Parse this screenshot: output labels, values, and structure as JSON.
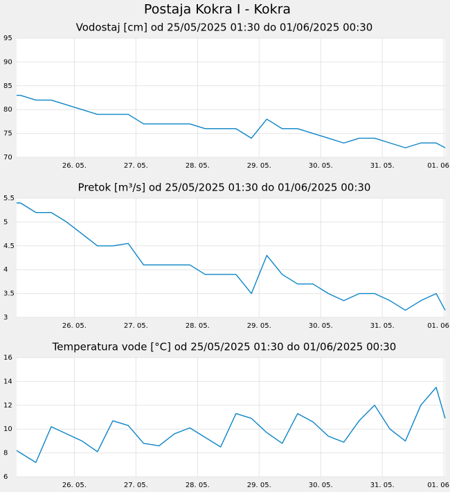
{
  "title": "Postaja Kokra I - Kokra",
  "chart_data": [
    {
      "type": "line",
      "title": "Vodostaj [cm] od 25/05/2025 01:30 do 01/06/2025 00:30",
      "x": [
        "2025-05-25 01:30",
        "2025-05-25 03:00",
        "2025-05-25 09:00",
        "2025-05-25 15:00",
        "2025-05-25 21:00",
        "2025-05-26 03:00",
        "2025-05-26 09:00",
        "2025-05-26 15:00",
        "2025-05-26 21:00",
        "2025-05-27 03:00",
        "2025-05-27 09:00",
        "2025-05-27 15:00",
        "2025-05-27 21:00",
        "2025-05-28 03:00",
        "2025-05-28 09:00",
        "2025-05-28 15:00",
        "2025-05-28 21:00",
        "2025-05-29 03:00",
        "2025-05-29 09:00",
        "2025-05-29 15:00",
        "2025-05-29 21:00",
        "2025-05-30 03:00",
        "2025-05-30 09:00",
        "2025-05-30 15:00",
        "2025-05-30 21:00",
        "2025-05-31 03:00",
        "2025-05-31 09:00",
        "2025-05-31 15:00",
        "2025-05-31 21:00",
        "2025-06-01 00:30"
      ],
      "series": [
        {
          "color": "#0a84c8",
          "values": [
            83,
            83,
            82,
            82,
            81,
            80,
            79,
            79,
            79,
            77,
            77,
            77,
            77,
            76,
            76,
            76,
            74,
            78,
            76,
            76,
            75,
            74,
            73,
            74,
            74,
            73,
            72,
            73,
            73,
            72
          ]
        }
      ],
      "xlim": [
        "2025-05-25 01:30",
        "2025-06-01 00:30"
      ],
      "xticks": [
        {
          "value": "2025-05-26 00:00",
          "label": "26. 05."
        },
        {
          "value": "2025-05-27 00:00",
          "label": "27. 05."
        },
        {
          "value": "2025-05-28 00:00",
          "label": "28. 05."
        },
        {
          "value": "2025-05-29 00:00",
          "label": "29. 05."
        },
        {
          "value": "2025-05-30 00:00",
          "label": "30. 05."
        },
        {
          "value": "2025-05-31 00:00",
          "label": "31. 05."
        },
        {
          "value": "2025-06-01 00:00",
          "label": "01. 06"
        }
      ],
      "ylim": [
        70,
        95
      ],
      "yticks": [
        70,
        75,
        80,
        85,
        90,
        95
      ],
      "grid": true
    },
    {
      "type": "line",
      "title": "Pretok [m³/s] od 25/05/2025 01:30 do 01/06/2025 00:30",
      "x": [
        "2025-05-25 01:30",
        "2025-05-25 03:00",
        "2025-05-25 09:00",
        "2025-05-25 15:00",
        "2025-05-25 21:00",
        "2025-05-26 03:00",
        "2025-05-26 09:00",
        "2025-05-26 15:00",
        "2025-05-26 21:00",
        "2025-05-27 03:00",
        "2025-05-27 09:00",
        "2025-05-27 15:00",
        "2025-05-27 21:00",
        "2025-05-28 03:00",
        "2025-05-28 09:00",
        "2025-05-28 15:00",
        "2025-05-28 21:00",
        "2025-05-29 03:00",
        "2025-05-29 09:00",
        "2025-05-29 15:00",
        "2025-05-29 21:00",
        "2025-05-30 03:00",
        "2025-05-30 09:00",
        "2025-05-30 15:00",
        "2025-05-30 21:00",
        "2025-05-31 03:00",
        "2025-05-31 09:00",
        "2025-05-31 15:00",
        "2025-05-31 21:00",
        "2025-06-01 00:30"
      ],
      "series": [
        {
          "color": "#0a84c8",
          "values": [
            5.4,
            5.4,
            5.2,
            5.2,
            5.0,
            4.75,
            4.5,
            4.5,
            4.55,
            4.1,
            4.1,
            4.1,
            4.1,
            3.9,
            3.9,
            3.9,
            3.5,
            4.3,
            3.9,
            3.7,
            3.7,
            3.5,
            3.35,
            3.5,
            3.5,
            3.35,
            3.15,
            3.35,
            3.5,
            3.15
          ]
        }
      ],
      "xlim": [
        "2025-05-25 01:30",
        "2025-06-01 00:30"
      ],
      "xticks": [
        {
          "value": "2025-05-26 00:00",
          "label": "26. 05."
        },
        {
          "value": "2025-05-27 00:00",
          "label": "27. 05."
        },
        {
          "value": "2025-05-28 00:00",
          "label": "28. 05."
        },
        {
          "value": "2025-05-29 00:00",
          "label": "29. 05."
        },
        {
          "value": "2025-05-30 00:00",
          "label": "30. 05."
        },
        {
          "value": "2025-05-31 00:00",
          "label": "31. 05."
        },
        {
          "value": "2025-06-01 00:00",
          "label": "01. 06"
        }
      ],
      "ylim": [
        3,
        5.5
      ],
      "yticks": [
        3,
        3.5,
        4,
        4.5,
        5,
        5.5
      ],
      "grid": true
    },
    {
      "type": "line",
      "title": "Temperatura vode [°C] od 25/05/2025 01:30 do 01/06/2025 00:30",
      "x": [
        "2025-05-25 01:30",
        "2025-05-25 03:00",
        "2025-05-25 09:00",
        "2025-05-25 15:00",
        "2025-05-25 21:00",
        "2025-05-26 03:00",
        "2025-05-26 09:00",
        "2025-05-26 15:00",
        "2025-05-26 21:00",
        "2025-05-27 03:00",
        "2025-05-27 09:00",
        "2025-05-27 15:00",
        "2025-05-27 21:00",
        "2025-05-28 03:00",
        "2025-05-28 09:00",
        "2025-05-28 15:00",
        "2025-05-28 21:00",
        "2025-05-29 03:00",
        "2025-05-29 09:00",
        "2025-05-29 15:00",
        "2025-05-29 21:00",
        "2025-05-30 03:00",
        "2025-05-30 09:00",
        "2025-05-30 15:00",
        "2025-05-30 21:00",
        "2025-05-31 03:00",
        "2025-05-31 09:00",
        "2025-05-31 15:00",
        "2025-05-31 21:00",
        "2025-06-01 00:30"
      ],
      "series": [
        {
          "color": "#0a84c8",
          "values": [
            8.2,
            8.0,
            7.2,
            10.2,
            9.6,
            9.0,
            8.1,
            10.7,
            10.3,
            8.8,
            8.6,
            9.6,
            10.1,
            9.3,
            8.5,
            11.3,
            10.9,
            9.7,
            8.8,
            11.3,
            10.6,
            9.4,
            8.9,
            10.7,
            12.0,
            10.0,
            9.0,
            12.0,
            13.5,
            10.9
          ]
        }
      ],
      "xlim": [
        "2025-05-25 01:30",
        "2025-06-01 00:30"
      ],
      "xticks": [
        {
          "value": "2025-05-26 00:00",
          "label": "26. 05."
        },
        {
          "value": "2025-05-27 00:00",
          "label": "27. 05."
        },
        {
          "value": "2025-05-28 00:00",
          "label": "28. 05."
        },
        {
          "value": "2025-05-29 00:00",
          "label": "29. 05."
        },
        {
          "value": "2025-05-30 00:00",
          "label": "30. 05."
        },
        {
          "value": "2025-05-31 00:00",
          "label": "31. 05."
        },
        {
          "value": "2025-06-01 00:00",
          "label": "01. 06"
        }
      ],
      "ylim": [
        6,
        16
      ],
      "yticks": [
        6,
        8,
        10,
        12,
        14,
        16
      ],
      "grid": true
    }
  ]
}
